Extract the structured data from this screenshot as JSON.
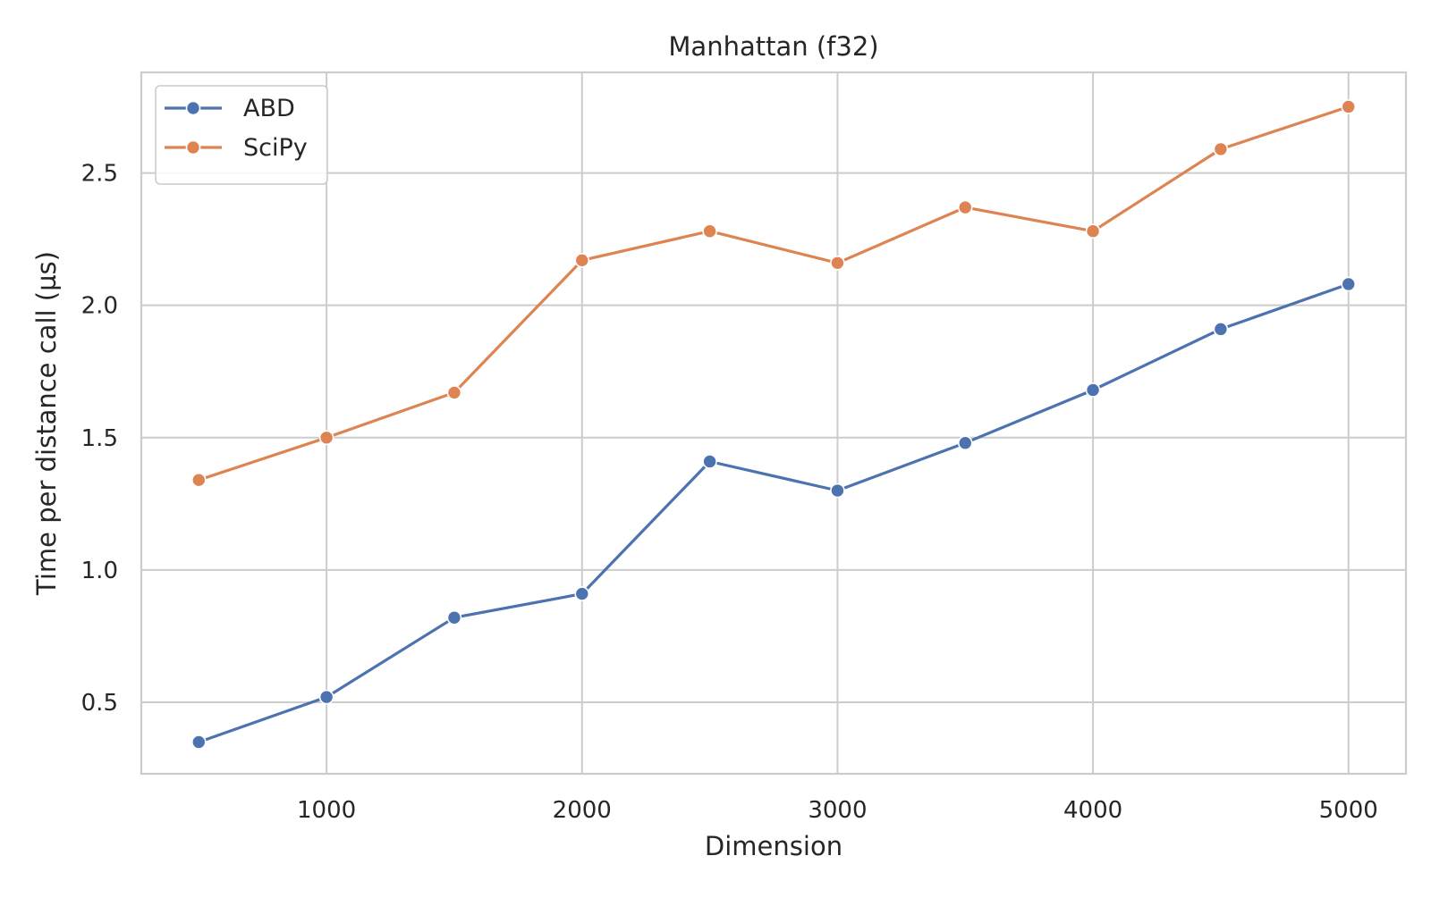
{
  "chart_data": {
    "type": "line",
    "title": "Manhattan (f32)",
    "xlabel": "Dimension",
    "ylabel": "Time per distance call (µs)",
    "x": [
      500,
      1000,
      1500,
      2000,
      2500,
      3000,
      3500,
      4000,
      4500,
      5000
    ],
    "xlim": [
      275,
      5225
    ],
    "ylim": [
      0.23,
      2.88
    ],
    "xticks": [
      1000,
      2000,
      3000,
      4000,
      5000
    ],
    "yticks": [
      0.5,
      1.0,
      1.5,
      2.0,
      2.5
    ],
    "xtick_labels": [
      "1000",
      "2000",
      "3000",
      "4000",
      "5000"
    ],
    "ytick_labels": [
      "0.5",
      "1.0",
      "1.5",
      "2.0",
      "2.5"
    ],
    "grid": true,
    "legend_position": "top-left",
    "series": [
      {
        "name": "ABD",
        "color": "#4c72b0",
        "values": [
          0.35,
          0.52,
          0.82,
          0.91,
          1.41,
          1.3,
          1.48,
          1.68,
          1.91,
          2.08
        ]
      },
      {
        "name": "SciPy",
        "color": "#dd8452",
        "values": [
          1.34,
          1.5,
          1.67,
          2.17,
          2.28,
          2.16,
          2.37,
          2.28,
          2.59,
          2.75
        ]
      }
    ]
  }
}
